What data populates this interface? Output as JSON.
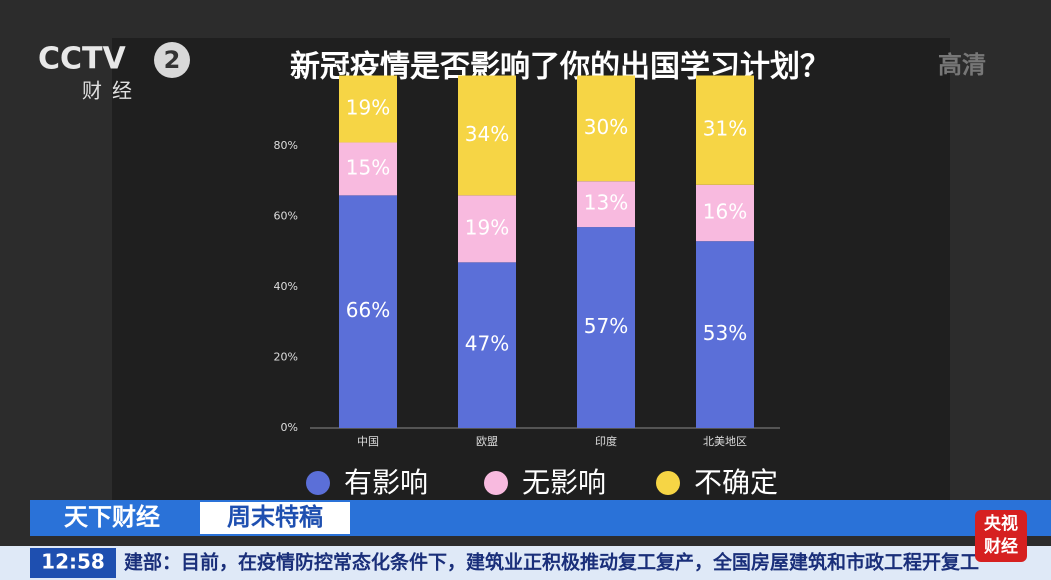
{
  "chart_data": {
    "type": "stacked-bar",
    "title": "新冠疫情是否影响了你的出国学习计划？",
    "categories": [
      "中国",
      "欧盟",
      "印度",
      "北美地区"
    ],
    "series": [
      {
        "name": "有影响",
        "color": "#5b6fd8",
        "values": [
          66,
          47,
          57,
          53
        ],
        "value_labels": [
          "66%",
          "47%",
          "57%",
          "53%"
        ]
      },
      {
        "name": "无影响",
        "color": "#f8badf",
        "values": [
          15,
          19,
          13,
          16
        ],
        "value_labels": [
          "15%",
          "19%",
          "13%",
          "16%"
        ]
      },
      {
        "name": "不确定",
        "color": "#f6d545",
        "values": [
          19,
          34,
          30,
          31
        ],
        "value_labels": [
          "19%",
          "34%",
          "30%",
          "31%"
        ]
      }
    ],
    "ylim": [
      0,
      100
    ],
    "yticks": [
      {
        "value": 0,
        "label": "0%"
      },
      {
        "value": 20,
        "label": "20%"
      },
      {
        "value": 40,
        "label": "40%"
      },
      {
        "value": 60,
        "label": "60%"
      },
      {
        "value": 80,
        "label": "80%"
      }
    ],
    "grid": false,
    "legend": "bottom"
  },
  "overlay": {
    "logo": "CCTV",
    "channel": "2",
    "channel_name": "财经",
    "hd": "高清",
    "program": "天下财经",
    "segment": "周末特稿",
    "time": "12:58",
    "ticker": "建部：目前，在疫情防控常态化条件下，建筑业正积极推动复工复产，全国房屋建筑和市政工程开复工",
    "corner_logo": [
      "央视",
      "财经"
    ]
  }
}
